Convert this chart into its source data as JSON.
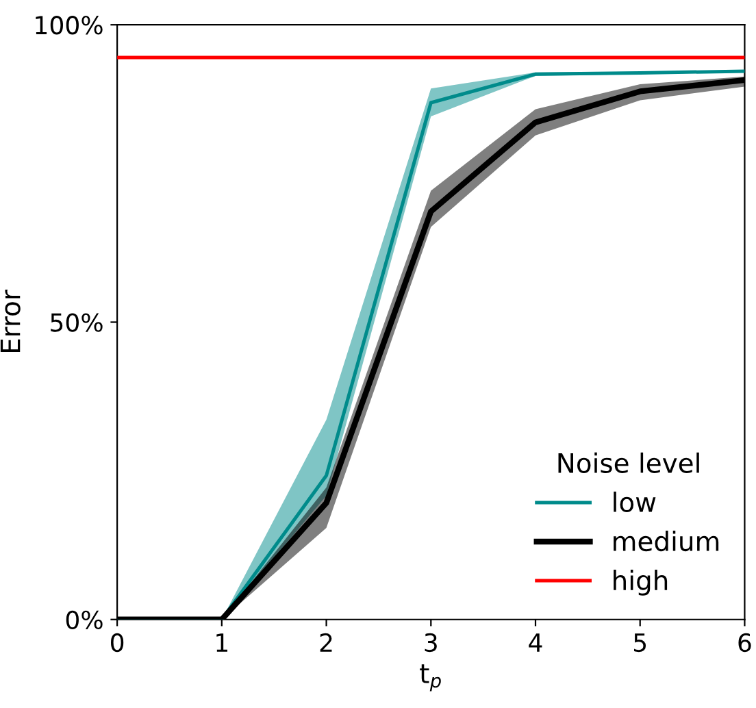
{
  "chart_data": {
    "type": "line",
    "xlabel": "t$_{p}$",
    "ylabel": "Error",
    "legend_title": "Noise level",
    "legend": "bottom right",
    "grid": false,
    "x": [
      0,
      1,
      2,
      3,
      4,
      5,
      6
    ],
    "series": [
      {
        "name": "low",
        "color": "#008b8b",
        "values": [
          0,
          0,
          24.2,
          86.9,
          91.7,
          91.9,
          92.2
        ],
        "lower": [
          0,
          0,
          20.8,
          84.6,
          91.4,
          91.7,
          92.0
        ],
        "upper": [
          0,
          0,
          33.6,
          89.3,
          92.0,
          92.1,
          92.4
        ]
      },
      {
        "name": "medium",
        "color": "#000000",
        "values": [
          0,
          0,
          19.6,
          68.6,
          83.6,
          88.8,
          90.7
        ],
        "lower": [
          0,
          0,
          15.4,
          66.0,
          81.4,
          87.3,
          89.6
        ],
        "upper": [
          0,
          0,
          22.2,
          72.1,
          85.8,
          90.0,
          91.3
        ]
      },
      {
        "name": "high",
        "color": "#ff0000",
        "values": [
          94.5,
          94.5,
          94.5,
          94.5,
          94.5,
          94.5,
          94.5
        ]
      }
    ],
    "xlim": [
      0,
      6
    ],
    "ylim": [
      0,
      100
    ],
    "xticks": [
      0,
      1,
      2,
      3,
      4,
      5,
      6
    ],
    "yticks": [
      {
        "value": 0,
        "label": "0%"
      },
      {
        "value": 50,
        "label": "50%"
      },
      {
        "value": 100,
        "label": "100%"
      }
    ]
  }
}
